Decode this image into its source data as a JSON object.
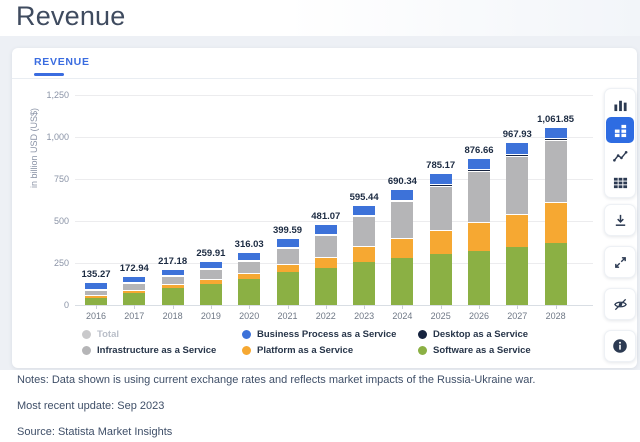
{
  "page_title": "Revenue",
  "tab": {
    "label": "REVENUE"
  },
  "chart_data": {
    "type": "bar",
    "stacked": true,
    "ylabel": "in billion USD (US$)",
    "ylim": [
      0,
      1250
    ],
    "yticks": [
      0,
      250,
      500,
      750,
      1000,
      1250
    ],
    "grid": "horizontal",
    "legend_position": "bottom",
    "categories": [
      "2016",
      "2017",
      "2018",
      "2019",
      "2020",
      "2021",
      "2022",
      "2023",
      "2024",
      "2025",
      "2026",
      "2027",
      "2028"
    ],
    "totals": [
      135.27,
      172.94,
      217.18,
      259.91,
      316.03,
      399.59,
      481.07,
      595.44,
      690.34,
      785.17,
      876.66,
      967.93,
      1061.85
    ],
    "total_labels": [
      "135.27",
      "172.94",
      "217.18",
      "259.91",
      "316.03",
      "399.59",
      "481.07",
      "595.44",
      "690.34",
      "785.17",
      "876.66",
      "967.93",
      "1,061.85"
    ],
    "series": [
      {
        "name": "Software as a Service",
        "color": "#8bb044",
        "values": [
          44,
          72.5,
          102,
          126,
          155,
          194.5,
          221,
          257,
          278,
          302,
          323,
          344,
          370
        ]
      },
      {
        "name": "Platform as a Service",
        "color": "#f6a832",
        "values": [
          18,
          20,
          25,
          31,
          39,
          51,
          64,
          95,
          121,
          147,
          172,
          200,
          242
        ]
      },
      {
        "name": "Infrastructure as a Service",
        "color": "#b5b5b7",
        "values": [
          31,
          39,
          47,
          56,
          71,
          96,
          132,
          175,
          220,
          262,
          305,
          345,
          368
        ]
      },
      {
        "name": "Desktop as a Service",
        "color": "#16233f",
        "values": [
          4,
          4.5,
          5,
          5,
          5,
          5.5,
          6,
          7,
          8,
          9,
          10,
          11,
          12
        ]
      },
      {
        "name": "Business Process as a Service",
        "color": "#3d72d9",
        "values": [
          38.27,
          36.94,
          38.18,
          41.91,
          46.03,
          52.59,
          58.07,
          61.44,
          63.34,
          65.17,
          66.66,
          67.93,
          69.85
        ]
      }
    ],
    "legend": [
      {
        "label": "Total",
        "color": "#c9c9cb",
        "disabled": true
      },
      {
        "label": "Infrastructure as a Service",
        "color": "#b5b5b7",
        "disabled": false
      },
      {
        "label": "Business Process as a Service",
        "color": "#3d72d9",
        "disabled": false
      },
      {
        "label": "Platform as a Service",
        "color": "#f6a832",
        "disabled": false
      },
      {
        "label": "Desktop as a Service",
        "color": "#16233f",
        "disabled": false
      },
      {
        "label": "Software as a Service",
        "color": "#8bb044",
        "disabled": false
      }
    ]
  },
  "toolbar": {
    "items": [
      {
        "name": "column-chart",
        "active": false,
        "group": "chart-type"
      },
      {
        "name": "stacked-chart",
        "active": true,
        "group": "chart-type"
      },
      {
        "name": "line-chart",
        "active": false,
        "group": "chart-type"
      },
      {
        "name": "table-view",
        "active": false,
        "group": "chart-type"
      },
      {
        "name": "download",
        "active": false,
        "group": "single"
      },
      {
        "name": "fullscreen",
        "active": false,
        "group": "single"
      },
      {
        "name": "hide",
        "active": false,
        "group": "single"
      },
      {
        "name": "info",
        "active": false,
        "group": "single"
      }
    ]
  },
  "notes": {
    "notes_line": "Notes: Data shown is using current exchange rates and reflects market impacts of the Russia-Ukraine war.",
    "update_line": "Most recent update: Sep 2023",
    "source_line": "Source: Statista Market Insights"
  }
}
